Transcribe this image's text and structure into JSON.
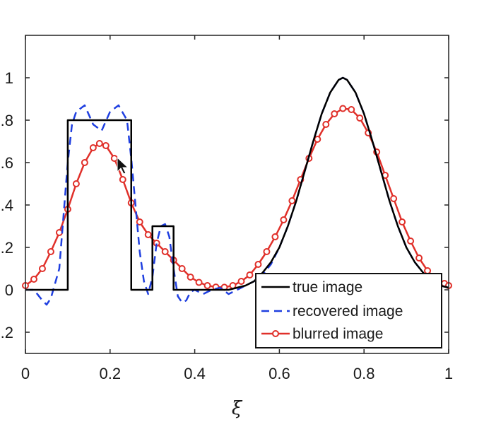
{
  "chart_data": {
    "type": "line",
    "title": "",
    "xlabel": "ξ",
    "ylabel": "",
    "xlim": [
      0,
      1
    ],
    "ylim": [
      -0.3,
      1.2
    ],
    "x_ticks": [
      0,
      0.2,
      0.4,
      0.6,
      0.8,
      1
    ],
    "x_tick_labels": [
      "0",
      "0.2",
      "0.4",
      "0.6",
      "0.8",
      "1"
    ],
    "y_ticks": [
      -0.2,
      0,
      0.2,
      0.4,
      0.6,
      0.8,
      1
    ],
    "y_tick_labels": [
      ".2",
      "0",
      ".2",
      ".4",
      ".6",
      ".8",
      "1"
    ],
    "grid": false,
    "legend_position": "bottom-right",
    "series": [
      {
        "name": "true image",
        "style": "solid",
        "color": "#000000",
        "x": [
          0,
          0.1,
          0.1,
          0.25,
          0.25,
          0.3,
          0.3,
          0.35,
          0.35,
          0.4,
          0.42,
          0.44,
          0.46,
          0.48,
          0.5,
          0.52,
          0.54,
          0.56,
          0.58,
          0.6,
          0.62,
          0.64,
          0.66,
          0.68,
          0.7,
          0.72,
          0.74,
          0.75,
          0.76,
          0.78,
          0.8,
          0.82,
          0.84,
          0.86,
          0.88,
          0.9,
          0.92,
          0.94,
          0.96,
          0.98,
          1.0
        ],
        "y": [
          0,
          0,
          0.8,
          0.8,
          0,
          0,
          0.3,
          0.3,
          0,
          0,
          0,
          0,
          0,
          0,
          0.01,
          0.02,
          0.04,
          0.08,
          0.13,
          0.2,
          0.3,
          0.42,
          0.56,
          0.7,
          0.83,
          0.93,
          0.99,
          1.0,
          0.99,
          0.93,
          0.83,
          0.7,
          0.56,
          0.42,
          0.3,
          0.2,
          0.13,
          0.08,
          0.04,
          0.02,
          0.01
        ]
      },
      {
        "name": "recovered image",
        "style": "dashed",
        "color": "#1f3fe0",
        "x": [
          0,
          0.02,
          0.04,
          0.05,
          0.06,
          0.08,
          0.09,
          0.1,
          0.11,
          0.12,
          0.14,
          0.16,
          0.18,
          0.2,
          0.22,
          0.24,
          0.25,
          0.26,
          0.27,
          0.28,
          0.29,
          0.3,
          0.31,
          0.32,
          0.33,
          0.34,
          0.35,
          0.36,
          0.37,
          0.38,
          0.39,
          0.4,
          0.42,
          0.44,
          0.46,
          0.48,
          0.5,
          0.52,
          0.54,
          0.56,
          0.58,
          0.6,
          0.62,
          0.64,
          0.66,
          0.68,
          0.7,
          0.72,
          0.74,
          0.75,
          0.76,
          0.78,
          0.8,
          0.82,
          0.84,
          0.86,
          0.88,
          0.9,
          0.92,
          0.94,
          0.96,
          0.98,
          1.0
        ],
        "y": [
          0.0,
          0.0,
          -0.05,
          -0.07,
          -0.04,
          0.1,
          0.35,
          0.6,
          0.78,
          0.84,
          0.87,
          0.78,
          0.75,
          0.84,
          0.87,
          0.8,
          0.62,
          0.4,
          0.18,
          0.04,
          -0.02,
          0.06,
          0.22,
          0.3,
          0.31,
          0.25,
          0.1,
          -0.03,
          -0.06,
          -0.05,
          -0.01,
          0.0,
          -0.02,
          0.0,
          0.01,
          -0.02,
          0.0,
          0.02,
          0.04,
          0.07,
          0.12,
          0.2,
          0.3,
          0.42,
          0.56,
          0.7,
          0.83,
          0.93,
          0.99,
          1.0,
          0.99,
          0.93,
          0.83,
          0.7,
          0.56,
          0.42,
          0.3,
          0.2,
          0.13,
          0.08,
          0.04,
          0.02,
          0.01
        ]
      },
      {
        "name": "blurred image",
        "style": "solid-circles",
        "color": "#e0302a",
        "x": [
          0,
          0.02,
          0.04,
          0.06,
          0.08,
          0.1,
          0.12,
          0.14,
          0.16,
          0.175,
          0.19,
          0.21,
          0.23,
          0.25,
          0.27,
          0.29,
          0.31,
          0.33,
          0.35,
          0.37,
          0.39,
          0.41,
          0.43,
          0.45,
          0.47,
          0.49,
          0.51,
          0.53,
          0.55,
          0.57,
          0.59,
          0.61,
          0.63,
          0.65,
          0.67,
          0.69,
          0.71,
          0.73,
          0.75,
          0.77,
          0.79,
          0.81,
          0.83,
          0.85,
          0.87,
          0.89,
          0.91,
          0.93,
          0.95,
          0.97,
          0.99,
          1.0
        ],
        "y": [
          0.02,
          0.05,
          0.1,
          0.18,
          0.27,
          0.38,
          0.5,
          0.6,
          0.67,
          0.69,
          0.68,
          0.62,
          0.52,
          0.41,
          0.32,
          0.26,
          0.22,
          0.18,
          0.14,
          0.1,
          0.06,
          0.035,
          0.02,
          0.013,
          0.012,
          0.02,
          0.04,
          0.07,
          0.12,
          0.18,
          0.25,
          0.33,
          0.42,
          0.52,
          0.62,
          0.71,
          0.78,
          0.83,
          0.855,
          0.85,
          0.81,
          0.74,
          0.65,
          0.54,
          0.43,
          0.32,
          0.23,
          0.15,
          0.09,
          0.05,
          0.03,
          0.02
        ]
      }
    ]
  }
}
